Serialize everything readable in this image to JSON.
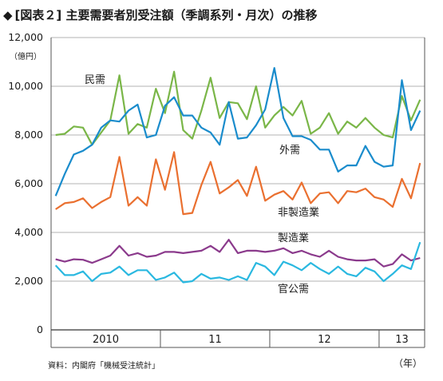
{
  "title_mark": "◆",
  "title": "[図表２] 主要需要者別受注額（季調系列・月次）の推移",
  "y_unit": "（億円）",
  "source": "資料：内閣府「機械受注統計」",
  "x_unit": "（年）",
  "chart_data": {
    "type": "line",
    "title": "[図表２] 主要需要者別受注額（季調系列・月次）の推移",
    "ylabel": "億円",
    "xlabel": "年",
    "ylim": [
      0,
      12000
    ],
    "yticks": [
      0,
      2000,
      4000,
      6000,
      8000,
      10000,
      12000
    ],
    "ytick_labels": [
      "0",
      "2,000",
      "4,000",
      "6,000",
      "8,000",
      "10,000",
      "12,000"
    ],
    "x_start": "2010-01",
    "x_end": "2013-04",
    "year_labels": [
      "2010",
      "11",
      "12",
      "13"
    ],
    "grid": "horizontal",
    "legend": "inline labels",
    "series": [
      {
        "name": "民需",
        "color": "#7ab648",
        "values": [
          8000,
          8050,
          8350,
          8300,
          7600,
          8100,
          8600,
          10450,
          8050,
          8450,
          8300,
          9900,
          8900,
          10600,
          8200,
          7850,
          9000,
          10350,
          8700,
          9350,
          9300,
          8650,
          10000,
          8300,
          8800,
          9150,
          8800,
          9400,
          8050,
          8300,
          8900,
          8050,
          8550,
          8300,
          8700,
          8300,
          8000,
          7900,
          9600,
          8600,
          9450
        ]
      },
      {
        "name": "外需",
        "color": "#1a8ccc",
        "values": [
          5500,
          6400,
          7200,
          7350,
          7600,
          8300,
          8600,
          8550,
          9000,
          9250,
          7900,
          8000,
          9200,
          9550,
          8800,
          8800,
          8300,
          8100,
          7600,
          9350,
          7850,
          7900,
          8400,
          9050,
          10750,
          8700,
          7950,
          7950,
          7800,
          7400,
          7400,
          6500,
          6750,
          6750,
          7550,
          6900,
          6700,
          6750,
          10250,
          8200,
          9000
        ]
      },
      {
        "name": "非製造業",
        "color": "#ea7030",
        "values": [
          4950,
          5200,
          5250,
          5400,
          5000,
          5250,
          5450,
          7100,
          5100,
          5450,
          5100,
          7000,
          5750,
          7300,
          4750,
          4800,
          5950,
          6900,
          5600,
          5850,
          6150,
          5500,
          6700,
          5300,
          5550,
          5700,
          5350,
          6050,
          5200,
          5600,
          5650,
          5200,
          5700,
          5650,
          5800,
          5450,
          5350,
          5050,
          6200,
          5400,
          6850
        ]
      },
      {
        "name": "製造業",
        "color": "#8b3a8c",
        "values": [
          2900,
          2800,
          2900,
          2880,
          2750,
          2900,
          3050,
          3450,
          3050,
          3150,
          3000,
          3050,
          3200,
          3200,
          3150,
          3200,
          3250,
          3450,
          3200,
          3700,
          3150,
          3250,
          3250,
          3200,
          3250,
          3350,
          3150,
          3250,
          3100,
          3000,
          3250,
          3000,
          2900,
          2850,
          2850,
          2900,
          2600,
          2700,
          3100,
          2850,
          2950
        ]
      },
      {
        "name": "官公需",
        "color": "#2ab8e0",
        "values": [
          2650,
          2250,
          2250,
          2400,
          2000,
          2300,
          2350,
          2600,
          2250,
          2450,
          2450,
          2050,
          2150,
          2350,
          1950,
          2000,
          2300,
          2100,
          2150,
          2050,
          2200,
          2050,
          2750,
          2600,
          2250,
          2800,
          2650,
          2450,
          2750,
          2500,
          2300,
          2600,
          2300,
          2200,
          2550,
          2400,
          2000,
          2300,
          2650,
          2500,
          3600
        ]
      }
    ]
  }
}
